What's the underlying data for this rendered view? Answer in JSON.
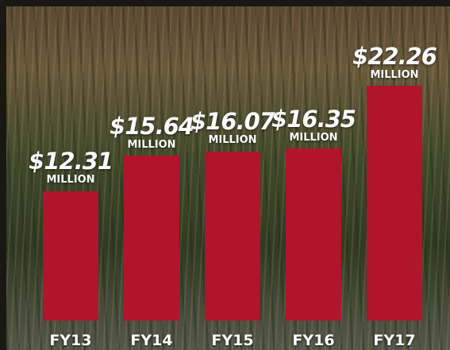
{
  "chart_data": {
    "type": "bar",
    "categories": [
      "FY13",
      "FY14",
      "FY15",
      "FY16",
      "FY17"
    ],
    "values": [
      12.31,
      15.64,
      16.07,
      16.35,
      22.26
    ],
    "value_labels": [
      "$12.31 MILLION",
      "$15.64 MILLION",
      "$16.07 MILLION",
      "$16.35 MILLION",
      "$22.26 MILLION"
    ],
    "color": "#b0152b",
    "ylim": [
      0,
      25
    ]
  }
}
